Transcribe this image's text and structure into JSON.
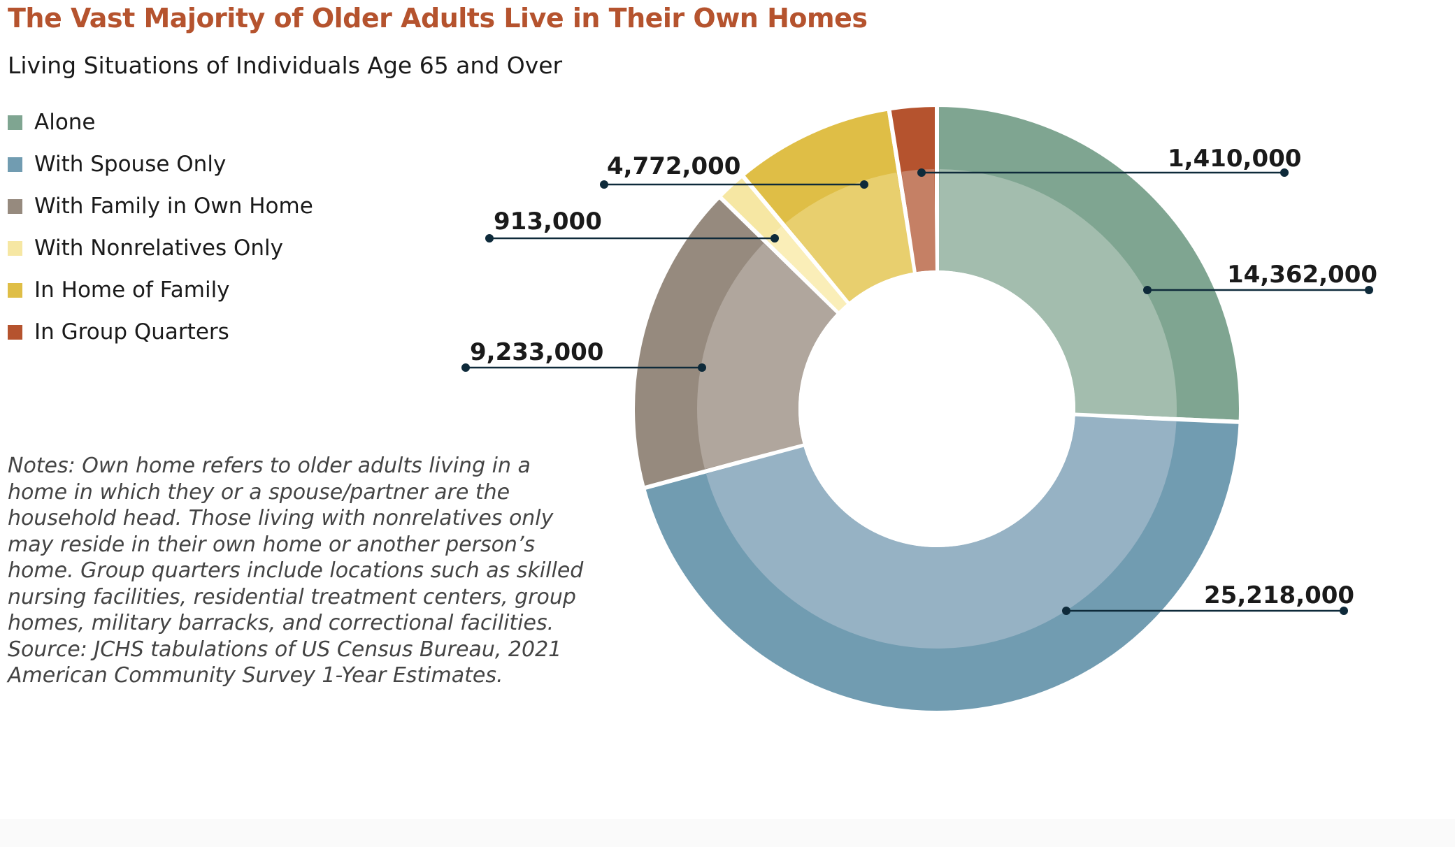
{
  "chart_data": {
    "type": "pie",
    "title": "The Vast Majority of Older Adults Live in Their Own Homes",
    "subtitle": "Living Situations of Individuals Age 65 and Over",
    "legend_position": "left",
    "series": [
      {
        "name": "Alone",
        "value": 14362000,
        "label": "14,362,000",
        "color": "#7FA591",
        "inner_color": "#A3BDAE"
      },
      {
        "name": "With Spouse Only",
        "value": 25218000,
        "label": "25,218,000",
        "color": "#719CB1",
        "inner_color": "#96B2C4"
      },
      {
        "name": "With Family in Own Home",
        "value": 9233000,
        "label": "9,233,000",
        "color": "#968A7E",
        "inner_color": "#B0A69D"
      },
      {
        "name": "With Nonrelatives Only",
        "value": 913000,
        "label": "913,000",
        "color": "#F6E7A3",
        "inner_color": "#FAEEB8"
      },
      {
        "name": "In Home of Family",
        "value": 4772000,
        "label": "4,772,000",
        "color": "#DFBE46",
        "inner_color": "#E8CF6E"
      },
      {
        "name": "In Group Quarters",
        "value": 1410000,
        "label": "1,410,000",
        "color": "#B5532E",
        "inner_color": "#C58065"
      }
    ]
  },
  "notes": {
    "text": "Notes: Own home refers to older adults living in a home in which they or a spouse/partner are the household head. Those living with nonrelatives only may reside in their own home or another person’s home. Group quarters include locations such as skilled nursing facilities, residential treatment centers, group homes, military barracks, and correctional facilities.",
    "source": "Source: JCHS tabulations of US Census Bureau, 2021 American Community Survey 1-Year Estimates."
  },
  "colors": {
    "title": "#B5532E",
    "leader_line": "#0E2A3A",
    "gap": "#FFFFFF"
  }
}
